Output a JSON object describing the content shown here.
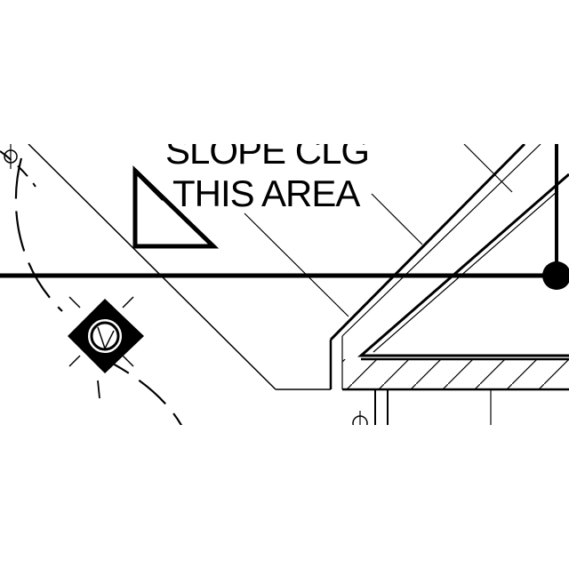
{
  "drawing": {
    "note_line1": "SLOPE CLG",
    "note_line2": "THIS AREA",
    "line_color": "#000000",
    "background": "#ffffff",
    "symbols": [
      "ceiling-fan-light-icon",
      "triangle-slope-marker-icon",
      "column-dot-icon",
      "hatched-wall-section"
    ]
  }
}
